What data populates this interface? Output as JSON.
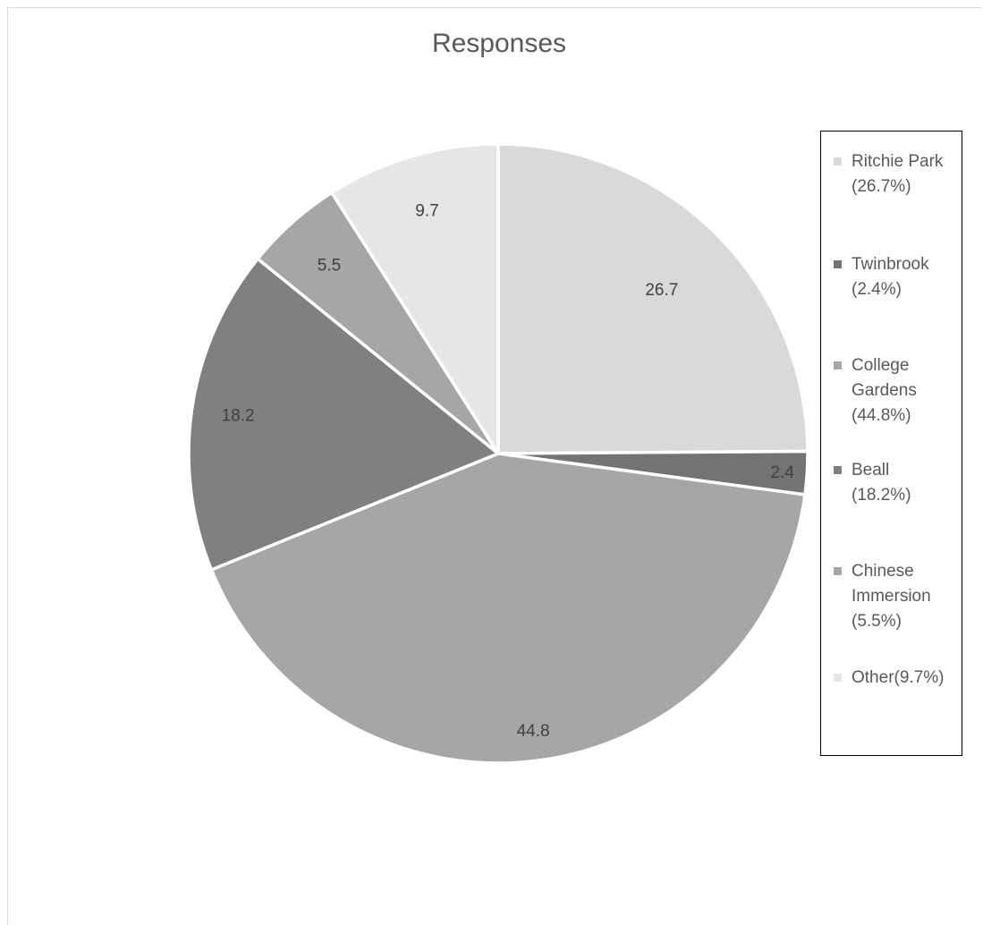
{
  "chart_data": {
    "type": "pie",
    "title": "Responses",
    "slices": [
      {
        "label": "Ritchie Park",
        "value": 26.7,
        "data_label": "26.7",
        "color": "#d9d9d9"
      },
      {
        "label": "Twinbrook",
        "value": 2.4,
        "data_label": "2.4",
        "color": "#737373"
      },
      {
        "label": "College Gardens",
        "value": 44.8,
        "data_label": "44.8",
        "color": "#a6a6a6"
      },
      {
        "label": "Beall",
        "value": 18.2,
        "data_label": "18.2",
        "color": "#808080"
      },
      {
        "label": "Chinese Immersion",
        "value": 5.5,
        "data_label": "5.5",
        "color": "#a6a6a6"
      },
      {
        "label": "Other",
        "value": 9.7,
        "data_label": "9.7",
        "color": "#e6e6e6"
      }
    ],
    "legend": {
      "position": "right",
      "entries": [
        "Ritchie Park\n(26.7%)",
        "Twinbrook\n(2.4%)",
        "College\nGardens\n(44.8%)",
        "Beall\n(18.2%)",
        "Chinese\nImmersion\n(5.5%)",
        "Other(9.7%)"
      ]
    }
  }
}
